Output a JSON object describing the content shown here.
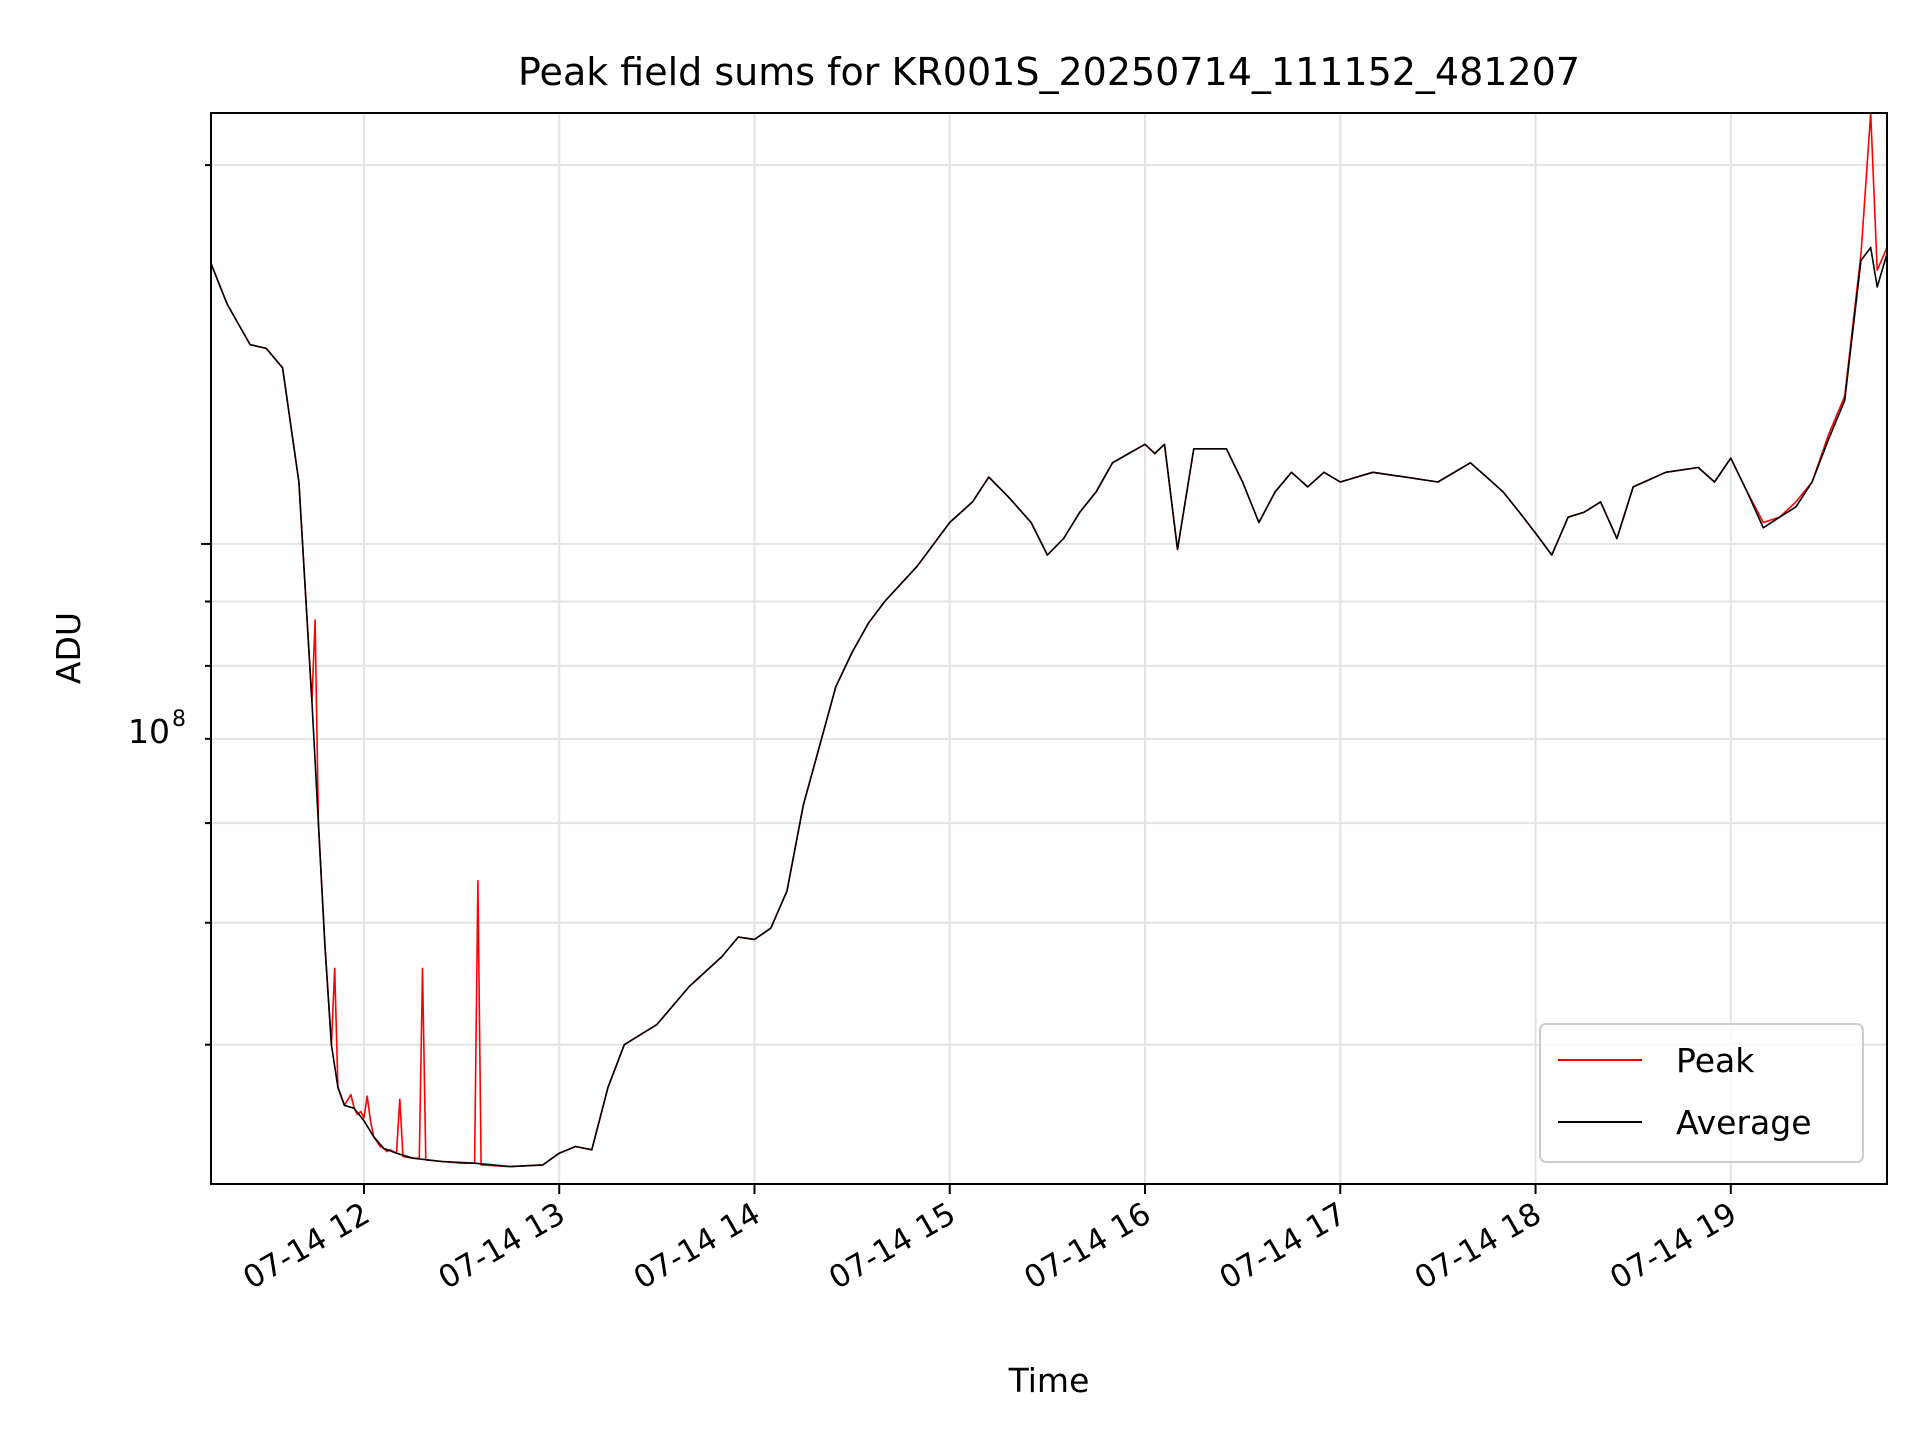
{
  "chart_data": {
    "type": "line",
    "title": "Peak field sums for KR001S_20250714_111152_481207",
    "xlabel": "Time",
    "ylabel": "ADU",
    "y_scale": "log",
    "grid": true,
    "legend_position": "bottom-right",
    "xlim": [
      "2025-07-14 11:13",
      "2025-07-14 19:48"
    ],
    "ylim": [
      31000000,
      220000000
    ],
    "x_ticks": [
      "07-14 12",
      "07-14 13",
      "07-14 14",
      "07-14 15",
      "07-14 16",
      "07-14 17",
      "07-14 18",
      "07-14 19"
    ],
    "y_tick_main": {
      "base": "10",
      "exponent": "8"
    },
    "series": [
      {
        "name": "Peak",
        "color": "#ff0000",
        "points": [
          [
            "2025-07-14 11:13",
            167000000
          ],
          [
            "2025-07-14 11:18",
            155000000
          ],
          [
            "2025-07-14 11:25",
            144000000
          ],
          [
            "2025-07-14 11:30",
            143000000
          ],
          [
            "2025-07-14 11:35",
            138000000
          ],
          [
            "2025-07-14 11:40",
            112000000
          ],
          [
            "2025-07-14 11:44",
            75000000
          ],
          [
            "2025-07-14 11:45",
            87000000
          ],
          [
            "2025-07-14 11:46",
            60000000
          ],
          [
            "2025-07-14 11:48",
            48000000
          ],
          [
            "2025-07-14 11:50",
            40000000
          ],
          [
            "2025-07-14 11:51",
            46000000
          ],
          [
            "2025-07-14 11:52",
            37000000
          ],
          [
            "2025-07-14 11:54",
            35800000
          ],
          [
            "2025-07-14 11:56",
            36500000
          ],
          [
            "2025-07-14 11:57",
            35600000
          ],
          [
            "2025-07-14 11:58",
            35200000
          ],
          [
            "2025-07-14 11:59",
            35400000
          ],
          [
            "2025-07-14 12:00",
            35000000
          ],
          [
            "2025-07-14 12:01",
            36400000
          ],
          [
            "2025-07-14 12:02",
            34800000
          ],
          [
            "2025-07-14 12:03",
            33800000
          ],
          [
            "2025-07-14 12:05",
            33200000
          ],
          [
            "2025-07-14 12:06",
            33100000
          ],
          [
            "2025-07-14 12:07",
            32900000
          ],
          [
            "2025-07-14 12:08",
            33000000
          ],
          [
            "2025-07-14 12:09",
            32900000
          ],
          [
            "2025-07-14 12:10",
            32800000
          ],
          [
            "2025-07-14 12:11",
            36200000
          ],
          [
            "2025-07-14 12:12",
            32600000
          ],
          [
            "2025-07-14 12:15",
            32500000
          ],
          [
            "2025-07-14 12:17",
            32500000
          ],
          [
            "2025-07-14 12:18",
            46000000
          ],
          [
            "2025-07-14 12:19",
            32400000
          ],
          [
            "2025-07-14 12:24",
            32300000
          ],
          [
            "2025-07-14 12:30",
            32200000
          ],
          [
            "2025-07-14 12:34",
            32200000
          ],
          [
            "2025-07-14 12:35",
            54000000
          ],
          [
            "2025-07-14 12:36",
            32100000
          ],
          [
            "2025-07-14 12:45",
            32000000
          ],
          [
            "2025-07-14 12:55",
            32100000
          ],
          [
            "2025-07-14 13:00",
            32800000
          ],
          [
            "2025-07-14 13:05",
            33200000
          ],
          [
            "2025-07-14 13:10",
            33000000
          ],
          [
            "2025-07-14 13:15",
            37000000
          ],
          [
            "2025-07-14 13:20",
            40000000
          ],
          [
            "2025-07-14 13:30",
            41500000
          ],
          [
            "2025-07-14 13:40",
            44500000
          ],
          [
            "2025-07-14 13:50",
            47000000
          ],
          [
            "2025-07-14 13:55",
            48700000
          ],
          [
            "2025-07-14 14:00",
            48500000
          ],
          [
            "2025-07-14 14:05",
            49500000
          ],
          [
            "2025-07-14 14:10",
            53000000
          ],
          [
            "2025-07-14 14:15",
            62000000
          ],
          [
            "2025-07-14 14:25",
            77000000
          ],
          [
            "2025-07-14 14:30",
            82000000
          ],
          [
            "2025-07-14 14:35",
            86500000
          ],
          [
            "2025-07-14 14:40",
            90000000
          ],
          [
            "2025-07-14 14:50",
            96000000
          ],
          [
            "2025-07-14 15:00",
            104000000
          ],
          [
            "2025-07-14 15:07",
            108000000
          ],
          [
            "2025-07-14 15:12",
            113000000
          ],
          [
            "2025-07-14 15:18",
            109000000
          ],
          [
            "2025-07-14 15:25",
            104000000
          ],
          [
            "2025-07-14 15:30",
            98000000
          ],
          [
            "2025-07-14 15:35",
            101000000
          ],
          [
            "2025-07-14 15:40",
            106000000
          ],
          [
            "2025-07-14 15:45",
            110000000
          ],
          [
            "2025-07-14 15:50",
            116000000
          ],
          [
            "2025-07-14 15:55",
            118000000
          ],
          [
            "2025-07-14 16:00",
            120000000
          ],
          [
            "2025-07-14 16:03",
            118000000
          ],
          [
            "2025-07-14 16:06",
            120000000
          ],
          [
            "2025-07-14 16:10",
            99000000
          ],
          [
            "2025-07-14 16:15",
            119000000
          ],
          [
            "2025-07-14 16:25",
            119000000
          ],
          [
            "2025-07-14 16:30",
            112000000
          ],
          [
            "2025-07-14 16:35",
            104000000
          ],
          [
            "2025-07-14 16:40",
            110000000
          ],
          [
            "2025-07-14 16:45",
            114000000
          ],
          [
            "2025-07-14 16:50",
            111000000
          ],
          [
            "2025-07-14 16:55",
            114000000
          ],
          [
            "2025-07-14 17:00",
            112000000
          ],
          [
            "2025-07-14 17:10",
            114000000
          ],
          [
            "2025-07-14 17:20",
            113000000
          ],
          [
            "2025-07-14 17:30",
            112000000
          ],
          [
            "2025-07-14 17:40",
            116000000
          ],
          [
            "2025-07-14 17:45",
            113000000
          ],
          [
            "2025-07-14 17:50",
            110000000
          ],
          [
            "2025-07-14 17:55",
            106000000
          ],
          [
            "2025-07-14 18:00",
            102000000
          ],
          [
            "2025-07-14 18:05",
            98000000
          ],
          [
            "2025-07-14 18:10",
            105000000
          ],
          [
            "2025-07-14 18:15",
            106000000
          ],
          [
            "2025-07-14 18:20",
            108000000
          ],
          [
            "2025-07-14 18:25",
            101000000
          ],
          [
            "2025-07-14 18:30",
            111000000
          ],
          [
            "2025-07-14 18:40",
            114000000
          ],
          [
            "2025-07-14 18:50",
            115000000
          ],
          [
            "2025-07-14 18:55",
            112000000
          ],
          [
            "2025-07-14 19:00",
            117000000
          ],
          [
            "2025-07-14 19:05",
            110000000
          ],
          [
            "2025-07-14 19:10",
            104000000
          ],
          [
            "2025-07-14 19:15",
            105000000
          ],
          [
            "2025-07-14 19:20",
            108000000
          ],
          [
            "2025-07-14 19:25",
            112000000
          ],
          [
            "2025-07-14 19:30",
            122000000
          ],
          [
            "2025-07-14 19:35",
            131000000
          ],
          [
            "2025-07-14 19:40",
            170000000
          ],
          [
            "2025-07-14 19:43",
            220000000
          ],
          [
            "2025-07-14 19:45",
            165000000
          ],
          [
            "2025-07-14 19:48",
            172000000
          ]
        ]
      },
      {
        "name": "Average",
        "color": "#000000",
        "points": [
          [
            "2025-07-14 11:13",
            167000000
          ],
          [
            "2025-07-14 11:18",
            155000000
          ],
          [
            "2025-07-14 11:25",
            144000000
          ],
          [
            "2025-07-14 11:30",
            143000000
          ],
          [
            "2025-07-14 11:35",
            138000000
          ],
          [
            "2025-07-14 11:40",
            112000000
          ],
          [
            "2025-07-14 11:44",
            75000000
          ],
          [
            "2025-07-14 11:46",
            60000000
          ],
          [
            "2025-07-14 11:48",
            48000000
          ],
          [
            "2025-07-14 11:50",
            40000000
          ],
          [
            "2025-07-14 11:52",
            37000000
          ],
          [
            "2025-07-14 11:54",
            35800000
          ],
          [
            "2025-07-14 11:57",
            35600000
          ],
          [
            "2025-07-14 12:00",
            34800000
          ],
          [
            "2025-07-14 12:03",
            33800000
          ],
          [
            "2025-07-14 12:06",
            33100000
          ],
          [
            "2025-07-14 12:10",
            32800000
          ],
          [
            "2025-07-14 12:15",
            32500000
          ],
          [
            "2025-07-14 12:24",
            32300000
          ],
          [
            "2025-07-14 12:34",
            32200000
          ],
          [
            "2025-07-14 12:45",
            32000000
          ],
          [
            "2025-07-14 12:55",
            32100000
          ],
          [
            "2025-07-14 13:00",
            32800000
          ],
          [
            "2025-07-14 13:05",
            33200000
          ],
          [
            "2025-07-14 13:10",
            33000000
          ],
          [
            "2025-07-14 13:15",
            37000000
          ],
          [
            "2025-07-14 13:20",
            40000000
          ],
          [
            "2025-07-14 13:30",
            41500000
          ],
          [
            "2025-07-14 13:40",
            44500000
          ],
          [
            "2025-07-14 13:50",
            47000000
          ],
          [
            "2025-07-14 13:55",
            48700000
          ],
          [
            "2025-07-14 14:00",
            48500000
          ],
          [
            "2025-07-14 14:05",
            49500000
          ],
          [
            "2025-07-14 14:10",
            53000000
          ],
          [
            "2025-07-14 14:15",
            62000000
          ],
          [
            "2025-07-14 14:25",
            77000000
          ],
          [
            "2025-07-14 14:30",
            82000000
          ],
          [
            "2025-07-14 14:35",
            86500000
          ],
          [
            "2025-07-14 14:40",
            90000000
          ],
          [
            "2025-07-14 14:50",
            96000000
          ],
          [
            "2025-07-14 15:00",
            104000000
          ],
          [
            "2025-07-14 15:07",
            108000000
          ],
          [
            "2025-07-14 15:12",
            113000000
          ],
          [
            "2025-07-14 15:18",
            109000000
          ],
          [
            "2025-07-14 15:25",
            104000000
          ],
          [
            "2025-07-14 15:30",
            98000000
          ],
          [
            "2025-07-14 15:35",
            101000000
          ],
          [
            "2025-07-14 15:40",
            106000000
          ],
          [
            "2025-07-14 15:45",
            110000000
          ],
          [
            "2025-07-14 15:50",
            116000000
          ],
          [
            "2025-07-14 15:55",
            118000000
          ],
          [
            "2025-07-14 16:00",
            120000000
          ],
          [
            "2025-07-14 16:03",
            118000000
          ],
          [
            "2025-07-14 16:06",
            120000000
          ],
          [
            "2025-07-14 16:10",
            99000000
          ],
          [
            "2025-07-14 16:15",
            119000000
          ],
          [
            "2025-07-14 16:25",
            119000000
          ],
          [
            "2025-07-14 16:30",
            112000000
          ],
          [
            "2025-07-14 16:35",
            104000000
          ],
          [
            "2025-07-14 16:40",
            110000000
          ],
          [
            "2025-07-14 16:45",
            114000000
          ],
          [
            "2025-07-14 16:50",
            111000000
          ],
          [
            "2025-07-14 16:55",
            114000000
          ],
          [
            "2025-07-14 17:00",
            112000000
          ],
          [
            "2025-07-14 17:10",
            114000000
          ],
          [
            "2025-07-14 17:20",
            113000000
          ],
          [
            "2025-07-14 17:30",
            112000000
          ],
          [
            "2025-07-14 17:40",
            116000000
          ],
          [
            "2025-07-14 17:45",
            113000000
          ],
          [
            "2025-07-14 17:50",
            110000000
          ],
          [
            "2025-07-14 17:55",
            106000000
          ],
          [
            "2025-07-14 18:00",
            102000000
          ],
          [
            "2025-07-14 18:05",
            98000000
          ],
          [
            "2025-07-14 18:10",
            105000000
          ],
          [
            "2025-07-14 18:15",
            106000000
          ],
          [
            "2025-07-14 18:20",
            108000000
          ],
          [
            "2025-07-14 18:25",
            101000000
          ],
          [
            "2025-07-14 18:30",
            111000000
          ],
          [
            "2025-07-14 18:40",
            114000000
          ],
          [
            "2025-07-14 18:50",
            115000000
          ],
          [
            "2025-07-14 18:55",
            112000000
          ],
          [
            "2025-07-14 19:00",
            117000000
          ],
          [
            "2025-07-14 19:05",
            110000000
          ],
          [
            "2025-07-14 19:10",
            103000000
          ],
          [
            "2025-07-14 19:15",
            105000000
          ],
          [
            "2025-07-14 19:20",
            107000000
          ],
          [
            "2025-07-14 19:25",
            112000000
          ],
          [
            "2025-07-14 19:30",
            121000000
          ],
          [
            "2025-07-14 19:35",
            130000000
          ],
          [
            "2025-07-14 19:40",
            168000000
          ],
          [
            "2025-07-14 19:43",
            172000000
          ],
          [
            "2025-07-14 19:45",
            160000000
          ],
          [
            "2025-07-14 19:48",
            170000000
          ]
        ]
      }
    ]
  }
}
